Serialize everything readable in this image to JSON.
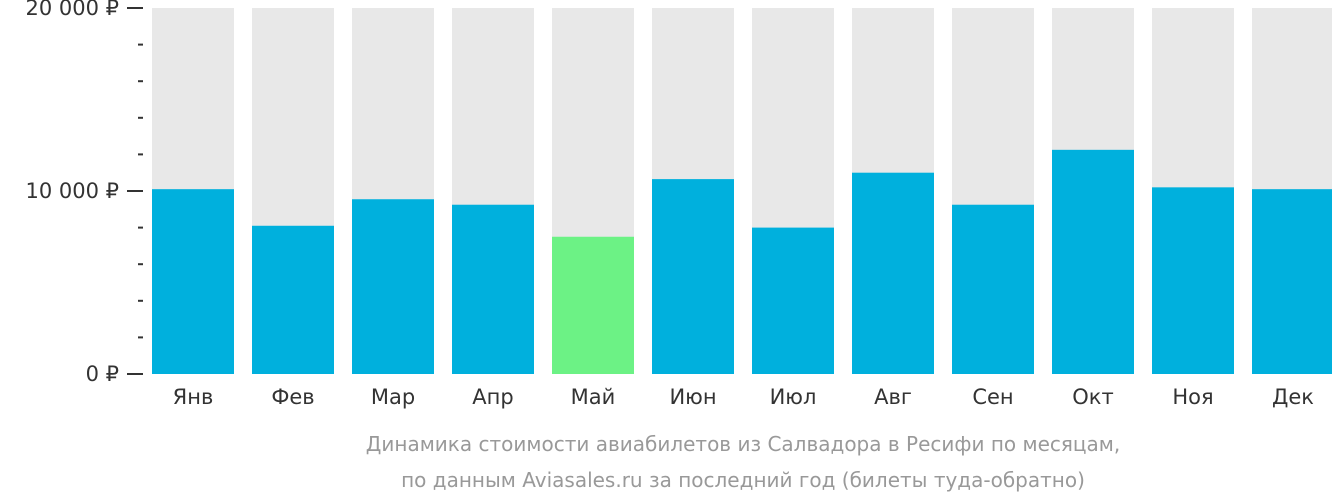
{
  "chart_data": {
    "type": "bar",
    "categories": [
      "Янв",
      "Фев",
      "Мар",
      "Апр",
      "Май",
      "Июн",
      "Июл",
      "Авг",
      "Сен",
      "Окт",
      "Ноя",
      "Дек"
    ],
    "values": [
      10100,
      8100,
      9550,
      9250,
      7500,
      10650,
      8000,
      11000,
      9250,
      12250,
      10200,
      10100
    ],
    "ylim": [
      0,
      20000
    ],
    "y_ticks": [
      {
        "value": 20000,
        "label": "20 000 ₽"
      },
      {
        "value": 10000,
        "label": "10 000 ₽"
      },
      {
        "value": 0,
        "label": "0 ₽"
      }
    ],
    "highlighted_category": "Май",
    "colors": {
      "bar": "#00b0dd",
      "highlight": "#6cf285",
      "background_bar": "#e8e8e8",
      "axis_text": "#333333",
      "caption": "#999999"
    },
    "grid": false,
    "legend": "none"
  },
  "caption": {
    "line1": "Динамика стоимости авиабилетов из Салвадора в Ресифи по месяцам,",
    "line2": "по данным Aviasales.ru за последний год (билеты туда-обратно)"
  }
}
